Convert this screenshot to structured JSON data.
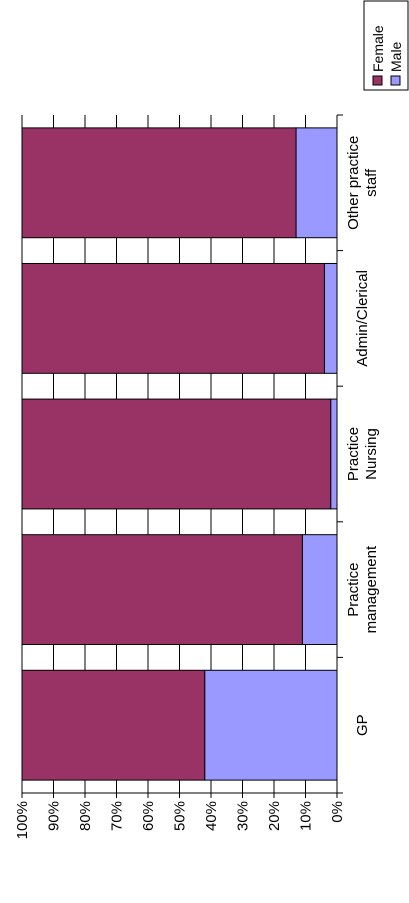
{
  "chart_data": {
    "type": "stacked_bar",
    "categories": [
      "GP",
      "Practice\nmanagement",
      "Practice\nNursing",
      "Admin/Clerical",
      "Other practice\nstaff"
    ],
    "series": [
      {
        "name": "Male",
        "color": "#9999ff",
        "values": [
          42,
          11,
          2,
          4,
          13
        ]
      },
      {
        "name": "Female",
        "color": "#993366",
        "values": [
          58,
          89,
          98,
          96,
          87
        ]
      }
    ],
    "ylim": [
      0,
      100
    ],
    "yticks": [
      {
        "value": 0,
        "label": "0%"
      },
      {
        "value": 10,
        "label": "10%"
      },
      {
        "value": 20,
        "label": "20%"
      },
      {
        "value": 30,
        "label": "30%"
      },
      {
        "value": 40,
        "label": "40%"
      },
      {
        "value": 50,
        "label": "50%"
      },
      {
        "value": 60,
        "label": "60%"
      },
      {
        "value": 70,
        "label": "70%"
      },
      {
        "value": 80,
        "label": "80%"
      },
      {
        "value": 90,
        "label": "90%"
      },
      {
        "value": 100,
        "label": "100%"
      }
    ],
    "grid": true
  }
}
